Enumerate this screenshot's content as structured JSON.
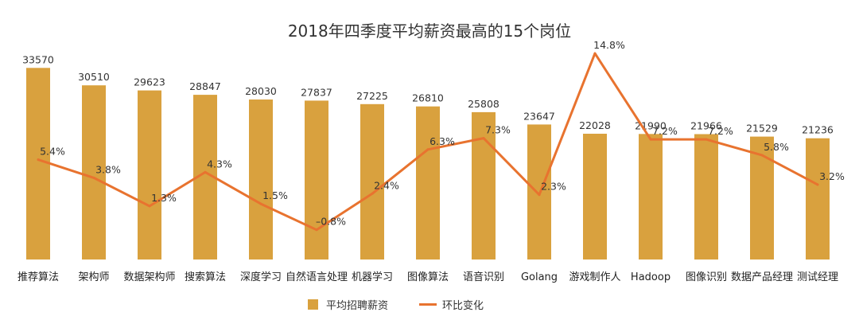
{
  "chart_data": {
    "type": "bar",
    "title": "2018年四季度平均薪资最高的15个岗位",
    "categories": [
      "推荐算法",
      "架构师",
      "数据架构师",
      "搜索算法",
      "深度学习",
      "自然语言处理",
      "机器学习",
      "图像算法",
      "语音识别",
      "Golang",
      "游戏制作人",
      "Hadoop",
      "图像识别",
      "数据产品经理",
      "测试经理"
    ],
    "series": [
      {
        "name": "平均招聘薪资",
        "type": "bar",
        "color": "#D9A13E",
        "values": [
          33570,
          30510,
          29623,
          28847,
          28030,
          27837,
          27225,
          26810,
          25808,
          23647,
          22028,
          21990,
          21966,
          21529,
          21236
        ],
        "labels": [
          "33570",
          "30510",
          "29623",
          "28847",
          "28030",
          "27837",
          "27225",
          "26810",
          "25808",
          "23647",
          "22028",
          "21990",
          "21966",
          "21529",
          "21236"
        ]
      },
      {
        "name": "环比变化",
        "type": "line",
        "color": "#E8732F",
        "values": [
          5.4,
          3.8,
          1.3,
          4.3,
          1.5,
          -0.8,
          2.4,
          6.3,
          7.3,
          2.3,
          14.8,
          7.2,
          7.2,
          5.8,
          3.2
        ],
        "labels": [
          "5.4%",
          "3.8%",
          "1.3%",
          "4.3%",
          "1.5%",
          "–0.8%",
          "2.4%",
          "6.3%",
          "7.3%",
          "2.3%",
          "14.8%",
          "7.2%",
          "7.2%",
          "5.8%",
          "3.2%"
        ]
      }
    ],
    "ylim_bar": [
      0,
      35000
    ],
    "ylim_line": [
      -3,
      16
    ],
    "grid": false,
    "legend_position": "bottom"
  }
}
